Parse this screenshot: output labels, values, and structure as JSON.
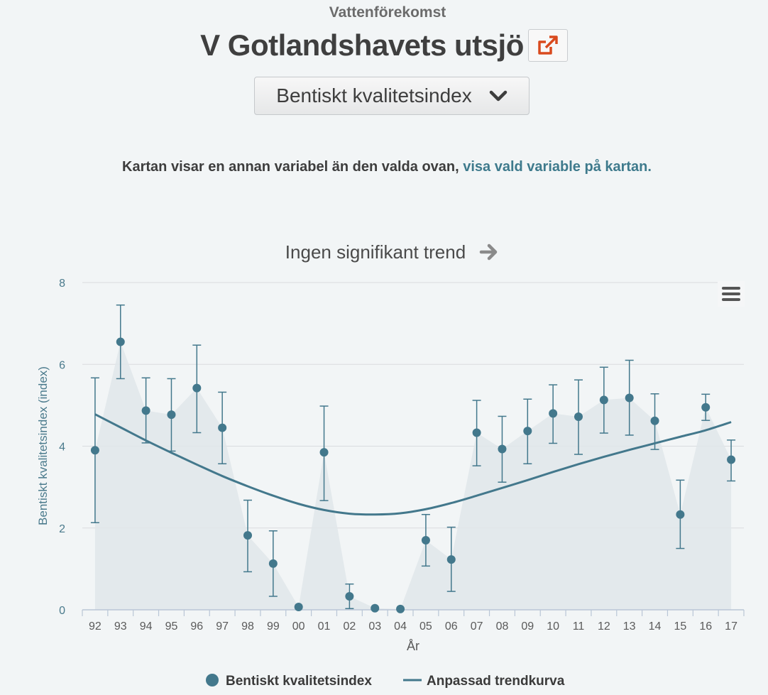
{
  "header": {
    "eyebrow": "Vattenförekomst",
    "title": "V Gotlandshavets utsjö",
    "variable_select": "Bentiskt kvalitetsindex"
  },
  "notice": {
    "text": "Kartan visar en annan variabel än den valda ovan,",
    "link": "visa vald variable på kartan."
  },
  "colors": {
    "accent": "#43788c",
    "link": "#3e7a8c",
    "external_icon": "#d94a1e",
    "area_fill": "#e1e6ea"
  },
  "icons": [
    "external-link-icon",
    "chevron-down-icon",
    "arrow-right-icon",
    "menu-icon"
  ],
  "chart_data": {
    "type": "scatter",
    "title": "Ingen signifikant trend",
    "xlabel": "År",
    "ylabel": "Bentiskt kvalitetsindex (index)",
    "ylim": [
      0,
      8
    ],
    "yticks": [
      0,
      2,
      4,
      6,
      8
    ],
    "categories": [
      "92",
      "93",
      "94",
      "95",
      "96",
      "97",
      "98",
      "99",
      "00",
      "01",
      "02",
      "03",
      "04",
      "05",
      "06",
      "07",
      "08",
      "09",
      "10",
      "11",
      "12",
      "13",
      "14",
      "15",
      "16",
      "17"
    ],
    "series": [
      {
        "name": "Bentiskt kvalitetsindex",
        "values": [
          3.9,
          6.55,
          4.87,
          4.77,
          5.42,
          4.45,
          1.82,
          1.13,
          0.07,
          3.85,
          0.33,
          0.04,
          0.02,
          1.7,
          1.23,
          4.33,
          3.93,
          4.37,
          4.8,
          4.72,
          5.13,
          5.18,
          4.62,
          2.33,
          4.95,
          3.67
        ],
        "error_low": [
          2.13,
          5.65,
          4.08,
          3.88,
          4.33,
          3.57,
          0.93,
          0.33,
          null,
          2.67,
          0.03,
          null,
          null,
          1.07,
          0.45,
          3.52,
          3.12,
          3.57,
          4.07,
          3.8,
          4.32,
          4.27,
          3.92,
          1.5,
          4.63,
          3.15
        ],
        "error_high": [
          5.67,
          7.45,
          5.67,
          5.65,
          6.47,
          5.32,
          2.68,
          1.93,
          null,
          4.98,
          0.63,
          null,
          null,
          2.33,
          2.02,
          5.12,
          4.73,
          5.15,
          5.5,
          5.62,
          5.93,
          6.1,
          5.28,
          3.17,
          5.27,
          4.15
        ]
      },
      {
        "name": "Anpassad trendkurva",
        "values": [
          4.78,
          4.46,
          4.14,
          3.84,
          3.55,
          3.27,
          3.02,
          2.79,
          2.59,
          2.44,
          2.35,
          2.33,
          2.36,
          2.46,
          2.61,
          2.79,
          2.98,
          3.17,
          3.37,
          3.56,
          3.74,
          3.91,
          4.07,
          4.23,
          4.39,
          4.59
        ]
      }
    ],
    "legend_position": "bottom-center",
    "grid": true
  }
}
